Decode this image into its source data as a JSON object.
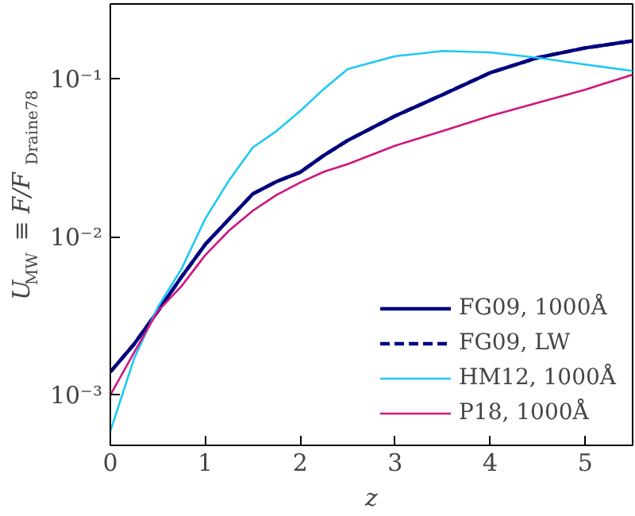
{
  "chart_data": {
    "type": "line",
    "xlabel": "z",
    "ylabel": "U$_{MW}$ ≡ F/F$_{Draine78}$",
    "x": [
      0,
      0.25,
      0.5,
      0.75,
      1,
      1.25,
      1.5,
      1.75,
      2,
      2.25,
      2.5,
      3,
      3.5,
      4,
      4.5,
      5,
      5.5
    ],
    "series": [
      {
        "name": "FG09, 1000Å",
        "color": "#00007f",
        "line_style": "solid",
        "values": [
          0.0014,
          0.0021,
          0.0034,
          0.0056,
          0.009,
          0.013,
          0.0188,
          0.0225,
          0.0258,
          0.033,
          0.041,
          0.0586,
          0.08,
          0.11,
          0.137,
          0.158,
          0.175
        ]
      },
      {
        "name": "FG09, LW",
        "color": "#00007f",
        "line_style": "dashed",
        "values": [
          0.0014,
          0.0021,
          0.0034,
          0.0056,
          0.009,
          0.013,
          0.0188,
          0.0225,
          0.0258,
          0.033,
          0.041,
          0.0586,
          0.08,
          0.11,
          0.137,
          0.158,
          0.175
        ]
      },
      {
        "name": "HM12, 1000Å",
        "color": "#1ec8f5",
        "line_style": "solid",
        "values": [
          0.00059,
          0.0017,
          0.0036,
          0.0063,
          0.0131,
          0.0229,
          0.037,
          0.047,
          0.063,
          0.087,
          0.116,
          0.14,
          0.151,
          0.148,
          0.137,
          0.124,
          0.113
        ]
      },
      {
        "name": "P18, 1000Å",
        "color": "#d0157f",
        "line_style": "solid",
        "values": [
          0.001,
          0.00186,
          0.0034,
          0.0049,
          0.0077,
          0.011,
          0.0147,
          0.0185,
          0.0222,
          0.026,
          0.029,
          0.038,
          0.047,
          0.0586,
          0.071,
          0.086,
          0.107
        ]
      }
    ],
    "xlim": [
      0,
      5.5
    ],
    "ylim": [
      0.00048,
      0.3
    ],
    "xticks": [
      0,
      1,
      2,
      3,
      4,
      5
    ],
    "yticks": [
      {
        "value": 0.001,
        "label": "10⁻³"
      },
      {
        "value": 0.01,
        "label": "10⁻²"
      },
      {
        "value": 0.1,
        "label": "10⁻¹"
      }
    ],
    "log": "y",
    "grid": false,
    "legend": "bottom right"
  }
}
